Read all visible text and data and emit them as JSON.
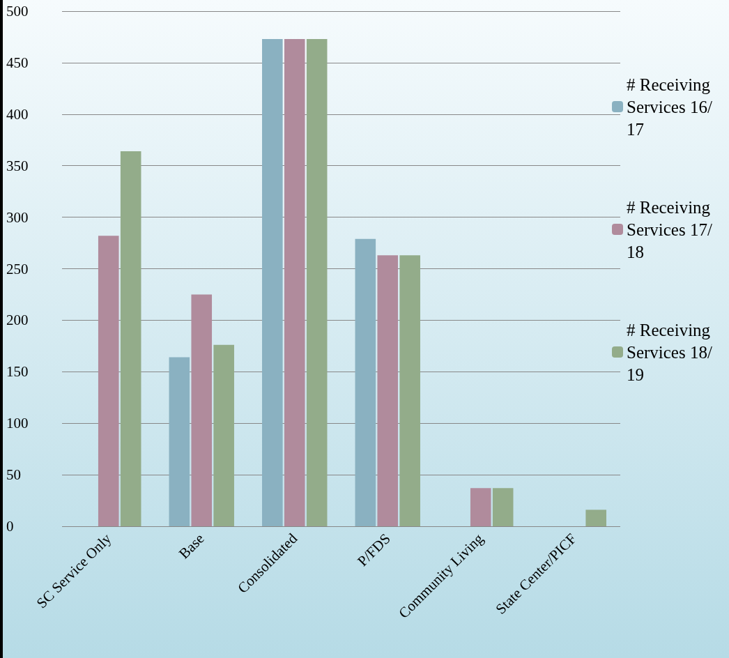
{
  "chart_data": {
    "type": "bar",
    "categories": [
      "SC Service Only",
      "Base",
      "Consolidated",
      "P/FDS",
      "Community Living",
      "State Center/PICF"
    ],
    "series": [
      {
        "name": "# Receiving Services 16/17",
        "color": "#8ab1c1",
        "values": [
          null,
          164,
          473,
          279,
          null,
          null
        ]
      },
      {
        "name": "# Receiving Services 17/18",
        "color": "#b08b9c",
        "values": [
          282,
          225,
          473,
          263,
          37,
          null
        ]
      },
      {
        "name": "# Receiving Services 18/19",
        "color": "#93ac8a",
        "values": [
          364,
          176,
          473,
          263,
          37,
          16
        ]
      }
    ],
    "ylim": [
      0,
      500
    ],
    "yticks": [
      0,
      50,
      100,
      150,
      200,
      250,
      300,
      350,
      400,
      450,
      500
    ],
    "grid": "y",
    "legend": "right"
  }
}
